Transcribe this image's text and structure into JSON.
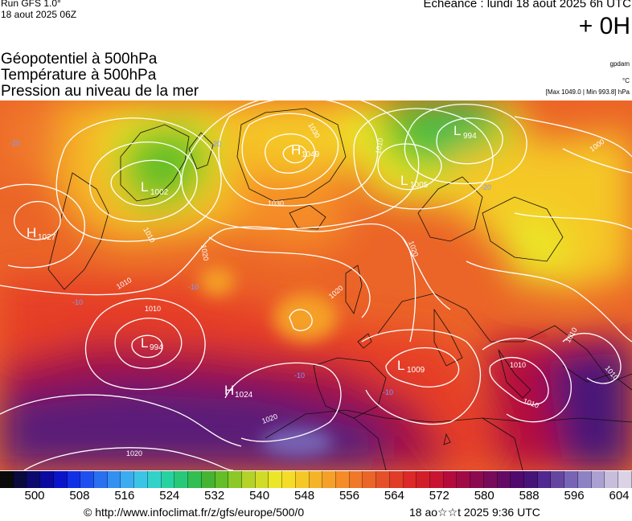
{
  "header": {
    "run_label": "Run GFS 1.0°",
    "run_date": "18 aout 2025 06Z",
    "echeance": "Echéance : lundi 18 aout 2025 6h UTC",
    "offset": "+ 0H"
  },
  "titles": {
    "line1": "Géopotentiel à 500hPa",
    "line2": "Température à 500hPa",
    "line3": "Pression au niveau de la mer"
  },
  "units": {
    "geopotential": "gpdam",
    "temperature": "°C",
    "range": "[Max 1049.0 | Min 993.8] hPa"
  },
  "pressure_centres": [
    {
      "type": "H",
      "value": "1049"
    },
    {
      "type": "L",
      "value": "994"
    },
    {
      "type": "L",
      "value": "1002"
    },
    {
      "type": "L",
      "value": "1005"
    },
    {
      "type": "H",
      "value": "1027"
    },
    {
      "type": "L",
      "value": "994"
    },
    {
      "type": "L",
      "value": "1009"
    },
    {
      "type": "H",
      "value": "1024"
    }
  ],
  "isobar_labels": [
    "1030",
    "1030",
    "1010",
    "1000",
    "1020",
    "1020",
    "1010",
    "1010",
    "1010",
    "1020",
    "1010",
    "1010",
    "1020",
    "1020",
    "1010",
    "1010"
  ],
  "temperature_labels": [
    "-20",
    "-20",
    "-10",
    "-10",
    "-10",
    "-10",
    "-20"
  ],
  "colorbar": {
    "ticks": [
      "500",
      "508",
      "516",
      "524",
      "532",
      "540",
      "548",
      "556",
      "564",
      "572",
      "580",
      "588",
      "596",
      "604"
    ],
    "colors": [
      "#0a0a0a",
      "#0a0a3c",
      "#0a0a6e",
      "#0a0aa0",
      "#0a14c8",
      "#1030e6",
      "#1e50f0",
      "#2870f0",
      "#3290f0",
      "#3cacf0",
      "#3cc4e6",
      "#32d2c8",
      "#28d2a0",
      "#28c878",
      "#32be50",
      "#46b432",
      "#64be28",
      "#8cc828",
      "#b4d228",
      "#d2dc28",
      "#ebe628",
      "#f5dc28",
      "#f5c828",
      "#f5b428",
      "#f5a028",
      "#f58c28",
      "#f07828",
      "#eb6428",
      "#e65028",
      "#e13c28",
      "#dc2828",
      "#d21e28",
      "#c81432",
      "#b40a3c",
      "#a00a46",
      "#8c0a50",
      "#780a5a",
      "#640a64",
      "#500a6e",
      "#461478",
      "#502890",
      "#6446a0",
      "#7864b4",
      "#8c82c4",
      "#aaa0d2",
      "#c8bedc",
      "#dcd2e6"
    ]
  },
  "footer": {
    "credit": "© http://www.infoclimat.fr/z/gfs/europe/500/0",
    "timestamp": "18 ao☆☆t 2025  9:36 UTC"
  }
}
